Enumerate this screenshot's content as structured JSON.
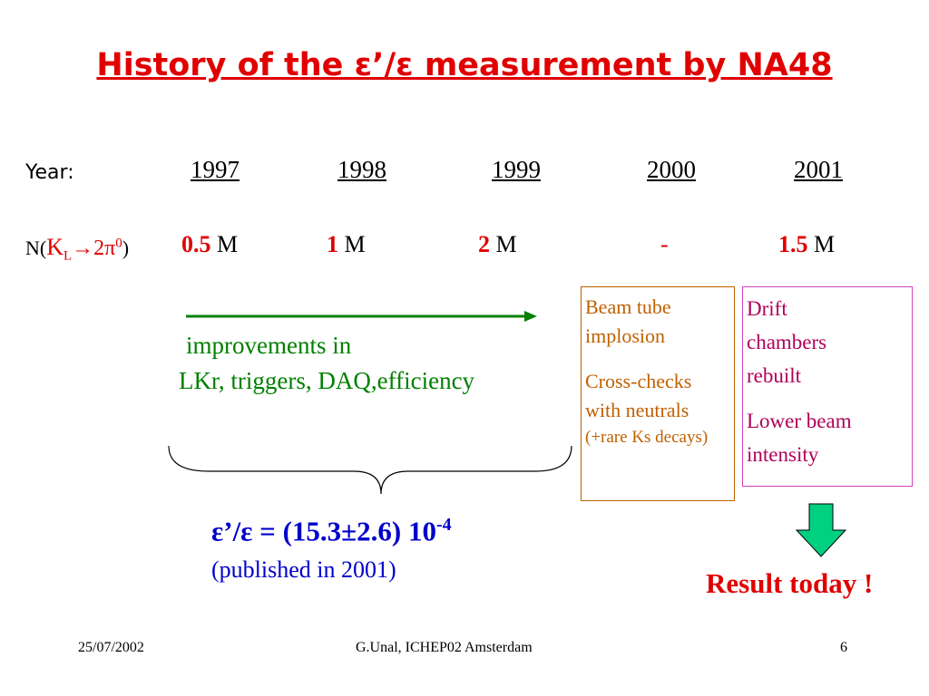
{
  "title": "History of the ε’/ε measurement by NA48",
  "years": {
    "label": "Year:",
    "items": [
      "1997",
      "1998",
      "1999",
      "2000",
      "2001"
    ]
  },
  "counts": {
    "label": {
      "prefix": "N(",
      "particle": "K",
      "subscript": "L",
      "arrow": "→2π",
      "superscript": "0",
      "suffix": ")"
    },
    "items": [
      {
        "number": "0.5",
        "unit": "M"
      },
      {
        "number": "1",
        "unit": "M"
      },
      {
        "number": "2",
        "unit": "M"
      },
      {
        "number": "-"
      },
      {
        "number": "1.5",
        "unit": "M"
      }
    ]
  },
  "improvements": [
    "improvements in",
    "LKr, triggers, DAQ,efficiency"
  ],
  "box_2000": [
    "Beam tube implosion",
    "Cross-checks with neutrals",
    "(+rare Ks decays)"
  ],
  "box_2001": [
    "Drift chambers rebuilt",
    "Lower beam intensity"
  ],
  "result": {
    "formula": "ε’/ε = (15.3±2.6) 10",
    "exponent": "-4",
    "note": "(published in 2001)"
  },
  "result_today": "Result today !",
  "footer": {
    "date": "25/07/2002",
    "author": "G.Unal, ICHEP02 Amsterdam",
    "page": "6"
  }
}
